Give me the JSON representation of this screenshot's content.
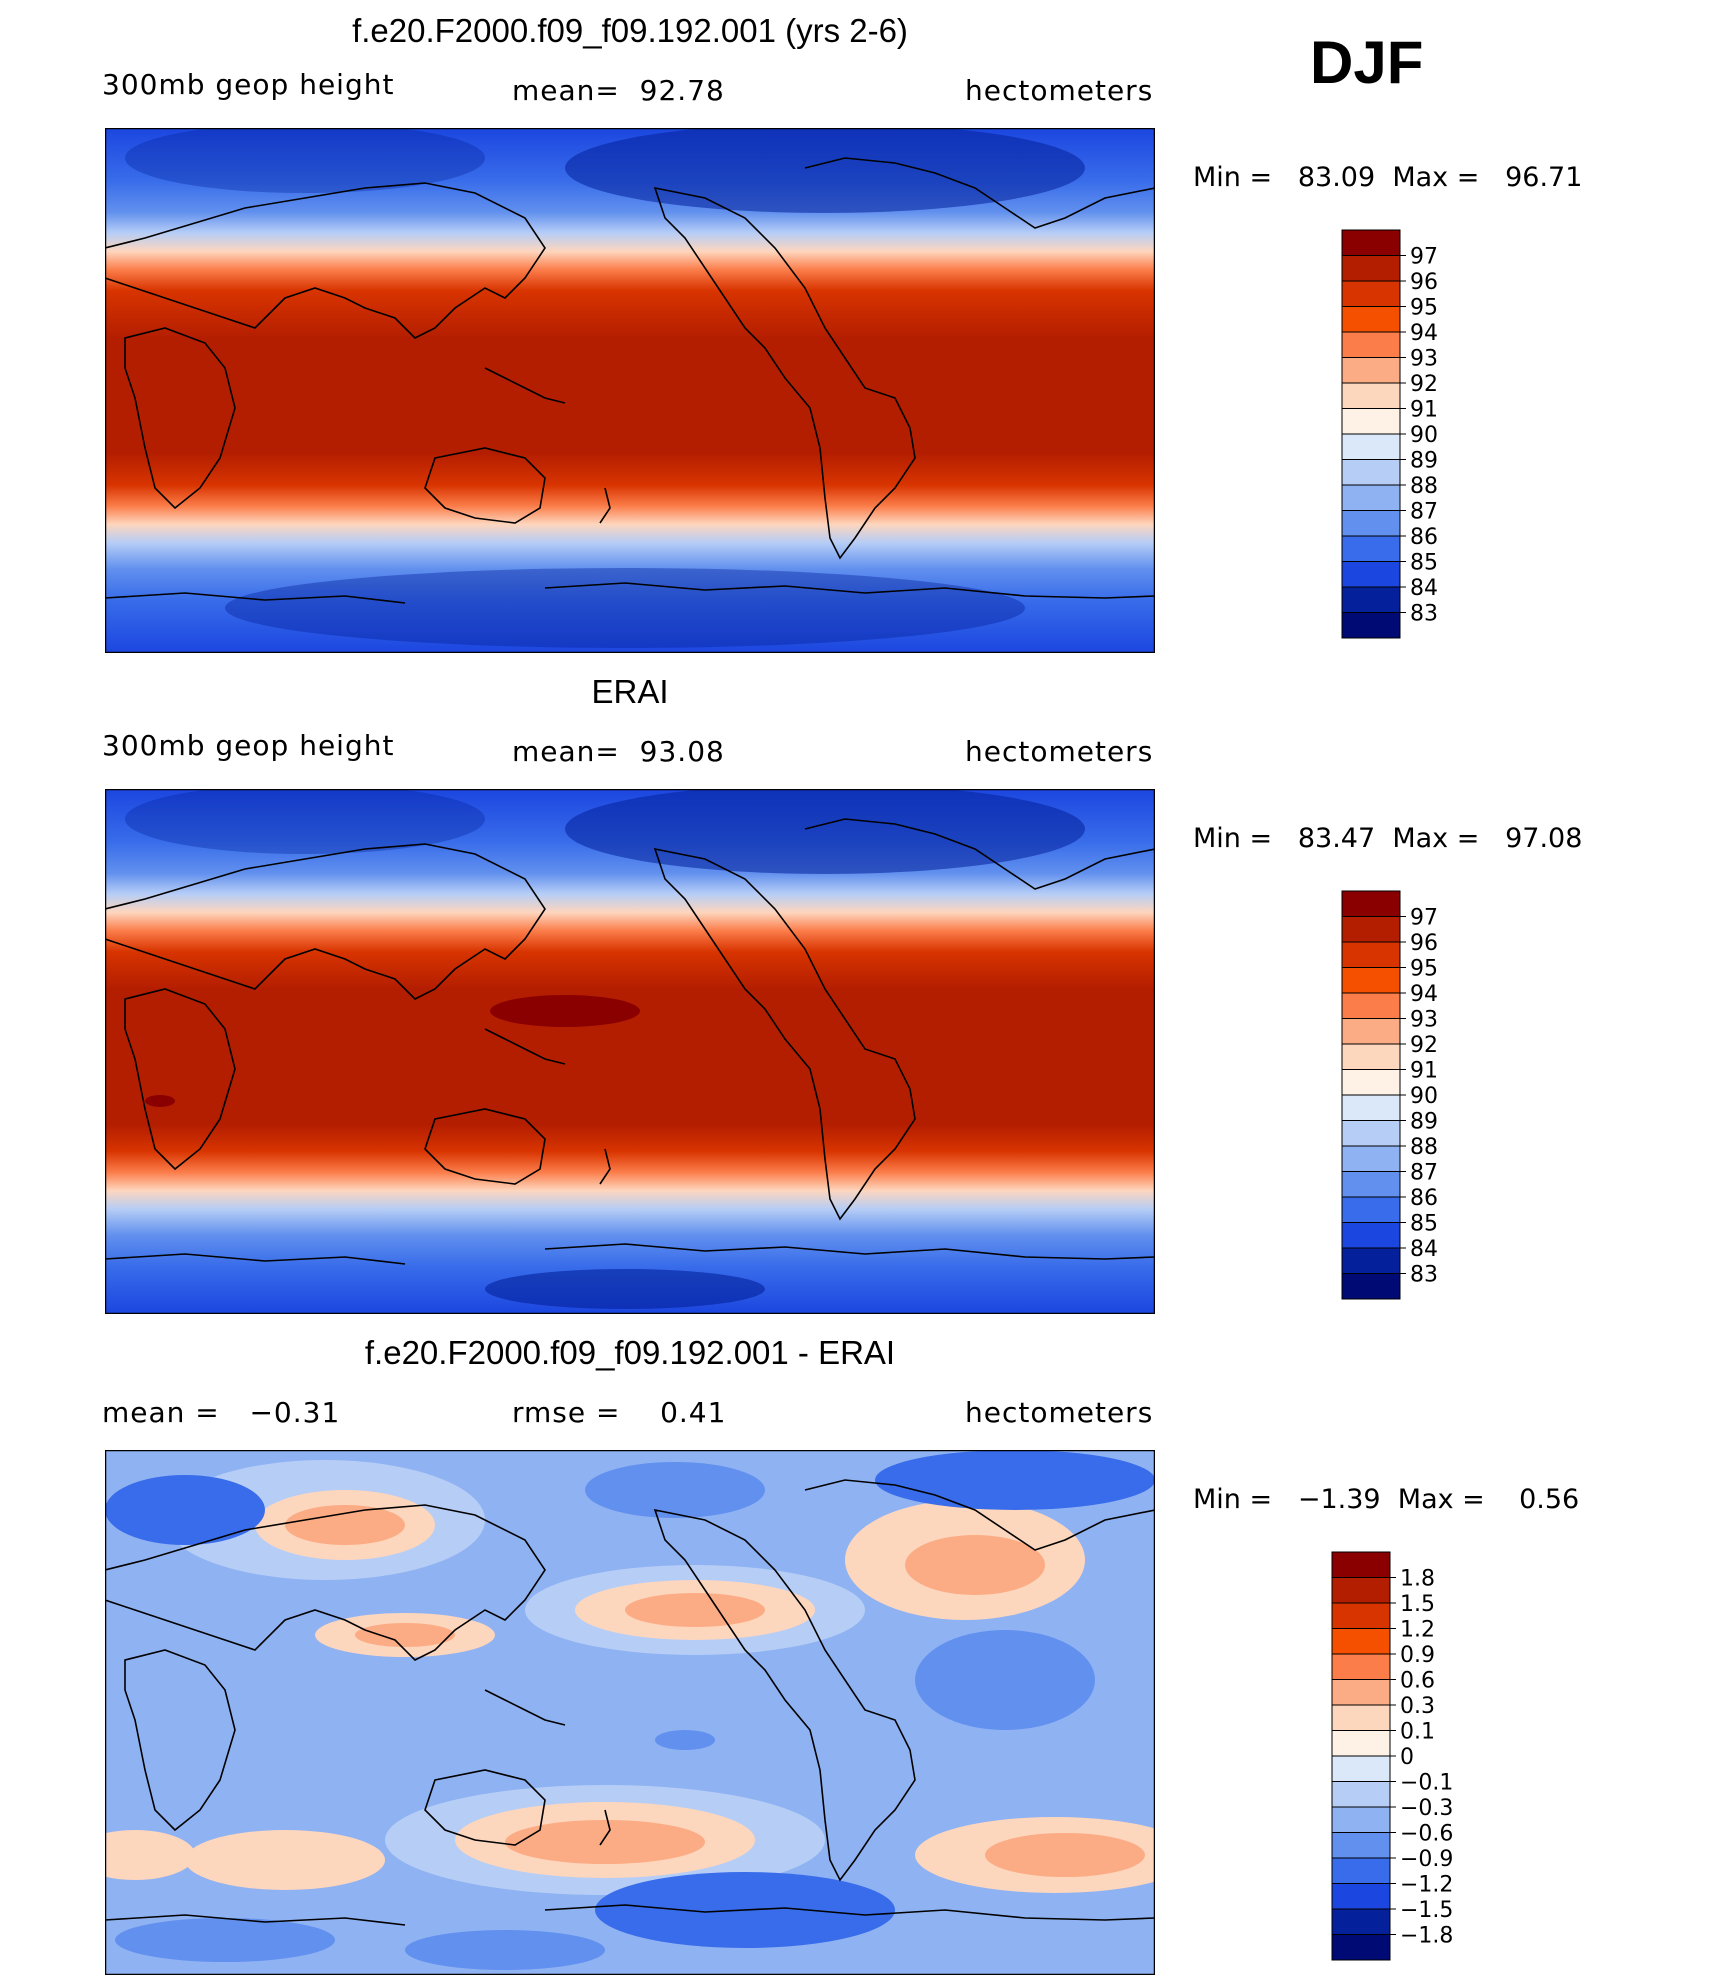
{
  "season": "DJF",
  "chart_data": [
    {
      "type": "heatmap",
      "title": "f.e20.F2000.f09_f09.192.001 (yrs 2-6)",
      "variable": "300mb geop height",
      "stat": "mean=  92.78",
      "units": "hectometers",
      "minmax": "Min =   83.09  Max =   96.71",
      "color_levels": [
        "97",
        "96",
        "95",
        "94",
        "93",
        "92",
        "91",
        "90",
        "89",
        "88",
        "87",
        "86",
        "85",
        "84",
        "83"
      ],
      "colors": [
        "#8a0000",
        "#b41e00",
        "#d83400",
        "#f45000",
        "#fb7d4a",
        "#fcac84",
        "#fdd6be",
        "#fef2e6",
        "#dbe8fa",
        "#b6cdf6",
        "#8fb2f2",
        "#6190ee",
        "#386cea",
        "#1c46e0",
        "#04219b",
        "#000a74"
      ],
      "ylim": [
        83,
        97
      ]
    },
    {
      "type": "heatmap",
      "title": "ERAI",
      "variable": "300mb geop height",
      "stat": "mean=  93.08",
      "units": "hectometers",
      "minmax": "Min =   83.47  Max =   97.08",
      "color_levels": [
        "97",
        "96",
        "95",
        "94",
        "93",
        "92",
        "91",
        "90",
        "89",
        "88",
        "87",
        "86",
        "85",
        "84",
        "83"
      ],
      "colors": [
        "#8a0000",
        "#b41e00",
        "#d83400",
        "#f45000",
        "#fb7d4a",
        "#fcac84",
        "#fdd6be",
        "#fef2e6",
        "#dbe8fa",
        "#b6cdf6",
        "#8fb2f2",
        "#6190ee",
        "#386cea",
        "#1c46e0",
        "#04219b",
        "#000a74"
      ],
      "ylim": [
        83,
        97
      ]
    },
    {
      "type": "heatmap",
      "title": "f.e20.F2000.f09_f09.192.001 - ERAI",
      "stat_left": "mean =   −0.31",
      "stat": "rmse =    0.41",
      "units": "hectometers",
      "minmax": "Min =   −1.39  Max =    0.56",
      "color_levels": [
        "1.8",
        "1.5",
        "1.2",
        "0.9",
        "0.6",
        "0.3",
        "0.1",
        "0",
        "−0.1",
        "−0.3",
        "−0.6",
        "−0.9",
        "−1.2",
        "−1.5",
        "−1.8"
      ],
      "colors": [
        "#8a0000",
        "#b41e00",
        "#d83400",
        "#f45000",
        "#fb7d4a",
        "#fcac84",
        "#fdd6be",
        "#fef2e6",
        "#dbe8fa",
        "#b6cdf6",
        "#8fb2f2",
        "#6190ee",
        "#386cea",
        "#1c46e0",
        "#04219b",
        "#000a74"
      ],
      "ylim": [
        -1.8,
        1.8
      ]
    }
  ]
}
